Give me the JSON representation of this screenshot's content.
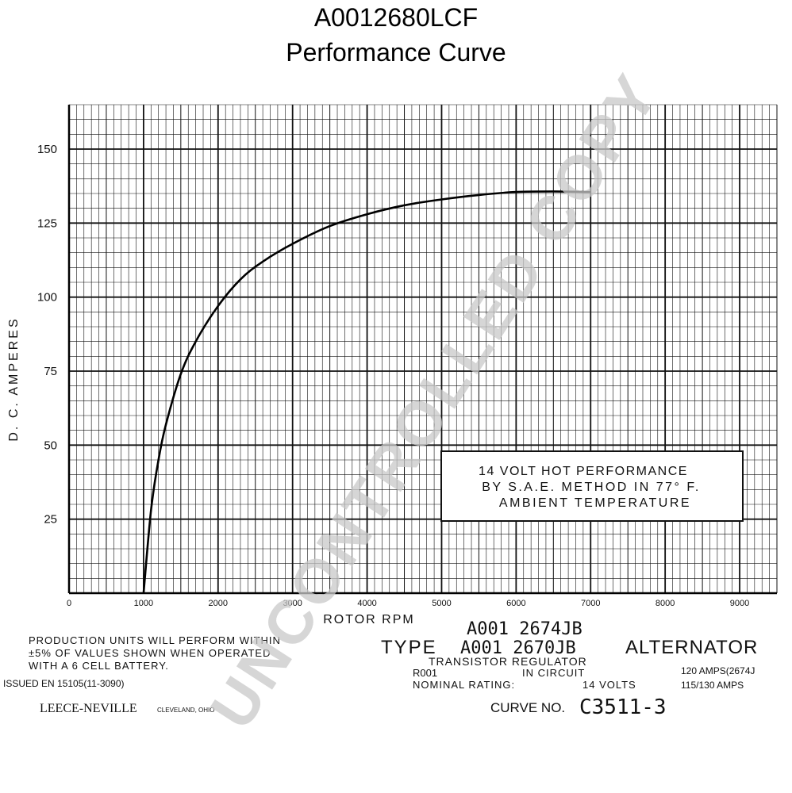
{
  "title": "A0012680LCF",
  "subtitle": "Performance Curve",
  "chart_data": {
    "type": "line",
    "title": "A0012680LCF Performance Curve",
    "xlabel": "ROTOR RPM",
    "ylabel": "D. C. AMPERES",
    "xlim": [
      0,
      9500
    ],
    "ylim": [
      0,
      165
    ],
    "x_ticks": [
      "0",
      "1000",
      "2000",
      "3000",
      "4000",
      "5000",
      "6000",
      "7000",
      "8000",
      "9000"
    ],
    "y_ticks": [
      "25",
      "50",
      "75",
      "100",
      "125",
      "150"
    ],
    "grid": true,
    "series": [
      {
        "x": [
          1000,
          1100,
          1200,
          1300,
          1500,
          1700,
          2000,
          2300,
          2600,
          3000,
          3500,
          4000,
          4500,
          5000,
          5500,
          6000,
          6500,
          7000
        ],
        "values": [
          0,
          28,
          45,
          57,
          74,
          85,
          97,
          106,
          112,
          118,
          124,
          128,
          131,
          133,
          134.5,
          135.5,
          135.7,
          135.5
        ]
      }
    ]
  },
  "annotation": {
    "line1": "14 VOLT HOT PERFORMANCE",
    "line2": "BY S.A.E. METHOD IN 77° F.",
    "line3": "AMBIENT TEMPERATURE"
  },
  "watermark": "UNCONTROLLED COPY",
  "footer": {
    "production_line1": "PRODUCTION UNITS WILL PERFORM WITHIN",
    "production_line2": "±5% OF VALUES SHOWN WHEN OPERATED",
    "production_line3": "WITH A 6 CELL BATTERY.",
    "issued": "ISSUED EN 15105(11-3090)",
    "company": "LEECE-NEVILLE",
    "city": "CLEVELAND, OHIO",
    "model1": "A001 2674JB",
    "type_label": "TYPE",
    "model2": "A001 2670JB",
    "alternator": "ALTERNATOR",
    "regulator1": "TRANSISTOR REGULATOR",
    "regulator2": "R001",
    "regulator3": "IN CIRCUIT",
    "nominal_label": "NOMINAL RATING:",
    "nominal_volts": "14 VOLTS",
    "amps1": "120 AMPS(2674J",
    "amps2": "115/130 AMPS",
    "curve_label": "CURVE NO.",
    "curve_no": "C3511-3"
  }
}
